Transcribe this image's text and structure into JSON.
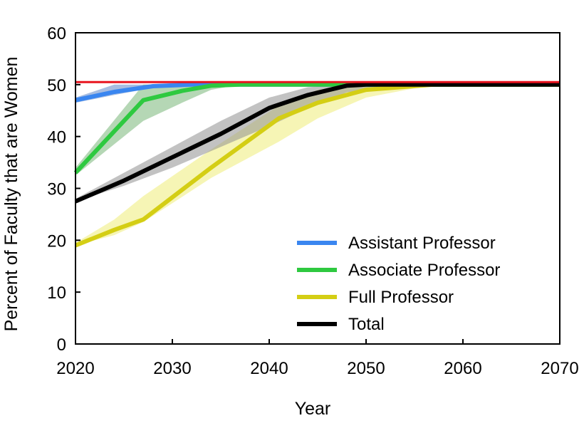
{
  "chart_data": {
    "type": "line",
    "title": "",
    "xlabel": "Year",
    "ylabel": "Percent of Faculty that are Women",
    "xlim": [
      2020,
      2070
    ],
    "ylim": [
      0,
      60
    ],
    "xticks": [
      "2020",
      "2030",
      "2040",
      "2050",
      "2060",
      "2070"
    ],
    "yticks": [
      "0",
      "10",
      "20",
      "30",
      "40",
      "50",
      "60"
    ],
    "grid": false,
    "legend_position": "bottom-right",
    "reference_line": {
      "y": 50.5,
      "color": "#e8141e"
    },
    "series": [
      {
        "name": "Assistant Professor",
        "color": "#3a86f0",
        "band_color": "#5e86c9",
        "x": [
          2020,
          2024,
          2028,
          2032,
          2036,
          2070
        ],
        "values": [
          47,
          48.6,
          49.7,
          50,
          50,
          50
        ],
        "lower": [
          46.5,
          48,
          49.4,
          50,
          50,
          50
        ],
        "upper": [
          47.5,
          50,
          50,
          50,
          50,
          50
        ]
      },
      {
        "name": "Associate Professor",
        "color": "#2ec940",
        "band_color": "#78b679",
        "x": [
          2020,
          2027,
          2031,
          2034,
          2037,
          2070
        ],
        "values": [
          33,
          47,
          48.8,
          49.8,
          50,
          50
        ],
        "lower": [
          32.5,
          43,
          46.5,
          49,
          50,
          50
        ],
        "upper": [
          34,
          50,
          50,
          50,
          50,
          50
        ]
      },
      {
        "name": "Full Professor",
        "color": "#d4ce14",
        "band_color": "#eeec79",
        "x": [
          2020,
          2024,
          2027,
          2034,
          2041,
          2045,
          2050,
          2057,
          2070
        ],
        "values": [
          19,
          22,
          24,
          34,
          43.5,
          46.5,
          49,
          50,
          50
        ],
        "lower": [
          19,
          21,
          23.5,
          32,
          39,
          43.5,
          47.5,
          50,
          50
        ],
        "upper": [
          19.5,
          24,
          28.5,
          37.5,
          46,
          49,
          50,
          50,
          50
        ]
      },
      {
        "name": "Total",
        "color": "#000000",
        "band_color": "#909090",
        "x": [
          2020,
          2025,
          2030,
          2035,
          2040,
          2044,
          2048,
          2050,
          2057,
          2070
        ],
        "values": [
          27.5,
          31.5,
          36,
          40.5,
          45.5,
          48,
          49.8,
          50,
          50,
          50
        ],
        "lower": [
          27.5,
          30.5,
          34,
          38,
          42,
          45.5,
          48.5,
          49,
          50,
          50
        ],
        "upper": [
          28,
          33,
          38,
          43,
          47.5,
          49.5,
          50,
          50,
          50,
          50
        ]
      }
    ]
  }
}
